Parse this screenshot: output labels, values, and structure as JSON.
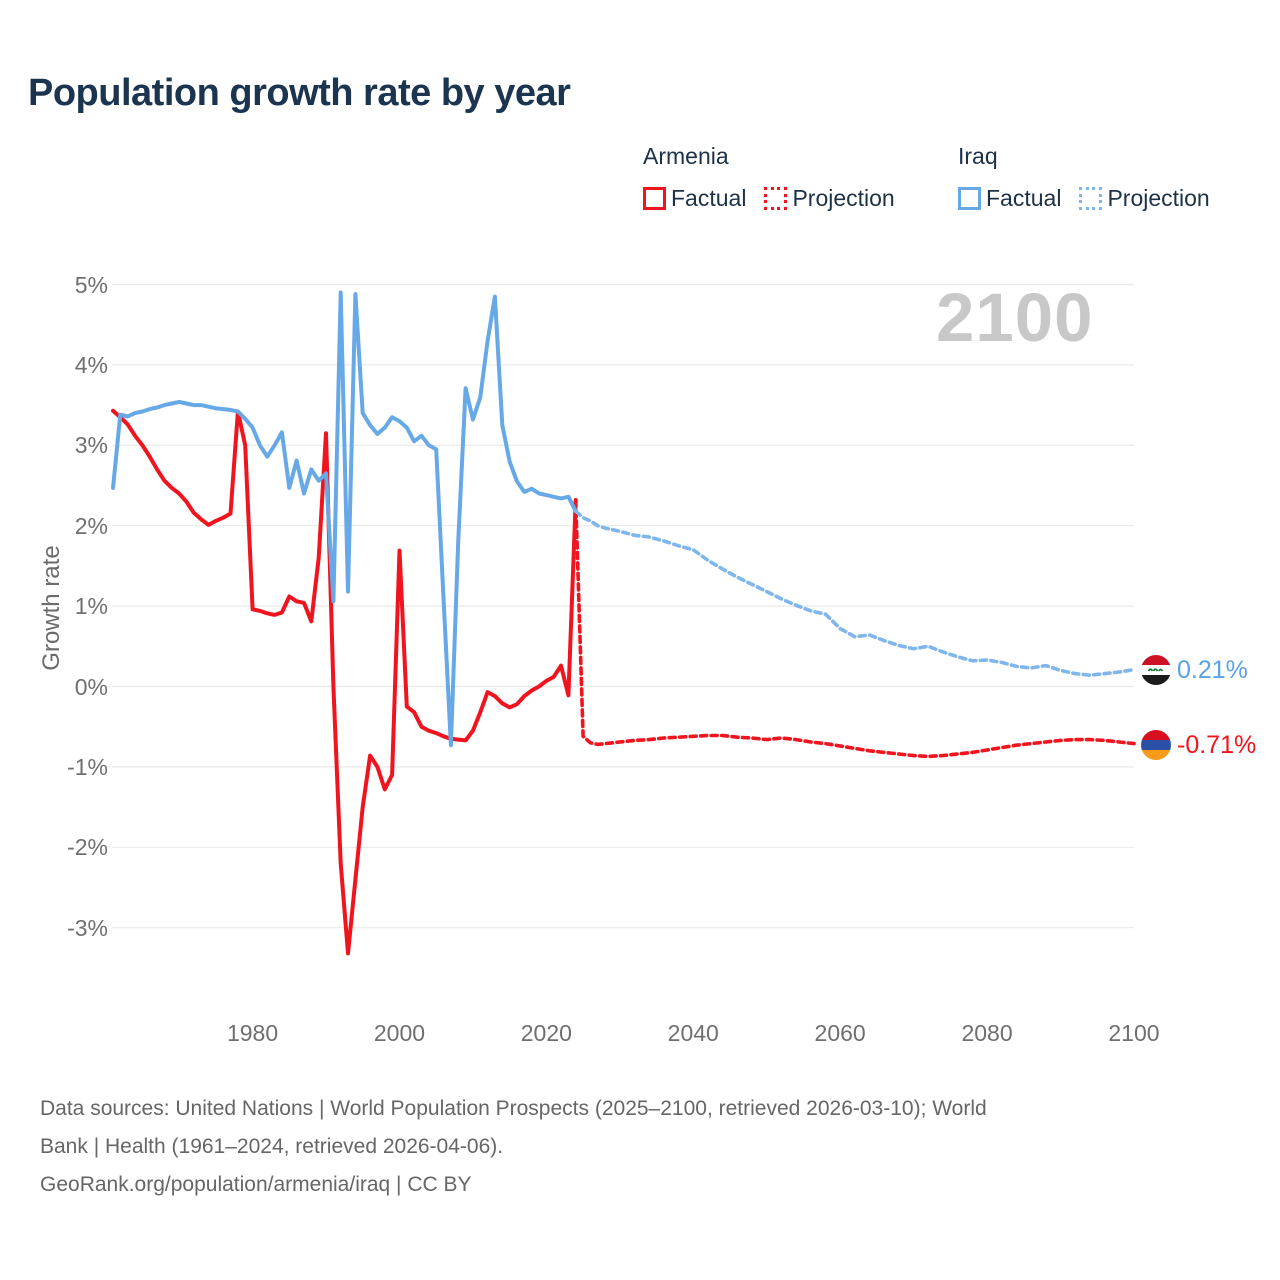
{
  "page": {
    "title": "Population growth rate by year"
  },
  "legend": {
    "groups": [
      {
        "country": "Armenia",
        "items": [
          {
            "label": "Factual",
            "style": "solid"
          },
          {
            "label": "Projection",
            "style": "dotted"
          }
        ]
      },
      {
        "country": "Iraq",
        "items": [
          {
            "label": "Factual",
            "style": "solid"
          },
          {
            "label": "Projection",
            "style": "dotted"
          }
        ]
      }
    ]
  },
  "watermark": "2100",
  "end_labels": [
    {
      "country": "Iraq",
      "value": "0.21%",
      "flag": "iraq-flag"
    },
    {
      "country": "Armenia",
      "value": "-0.71%",
      "flag": "armenia-flag"
    }
  ],
  "footer": {
    "lines": [
      "Data sources: United Nations | World Population Prospects (2025–2100, retrieved 2026-03-10); World",
      "Bank | Health (1961–2024, retrieved 2026-04-06).",
      "GeoRank.org/population/armenia/iraq | CC BY"
    ]
  },
  "colors": {
    "armenia": "#f0141e",
    "iraq": "#67a8e6",
    "iraq_projection": "#7fb6eb",
    "grid": "#eaeaea",
    "tick_text": "#6f6f6f",
    "title": "#1b3550",
    "legend_text": "#1d3147",
    "watermark": "#c8c8c8",
    "end_label_iraq": "#5aa2e6",
    "end_label_armenia": "#f0141e"
  },
  "chart_data": {
    "type": "line",
    "title": "Population growth rate by year",
    "xlabel": "",
    "ylabel": "Growth rate",
    "xlim": [
      1961,
      2100
    ],
    "ylim": [
      -3.5,
      5.2
    ],
    "grid": true,
    "grid_color": "#eaeaea",
    "legend_position": "top-right",
    "watermark": "2100",
    "y_ticks": [
      {
        "value": 5,
        "label": "5%"
      },
      {
        "value": 4,
        "label": "4%"
      },
      {
        "value": 3,
        "label": "3%"
      },
      {
        "value": 2,
        "label": "2%"
      },
      {
        "value": 1,
        "label": "1%"
      },
      {
        "value": 0,
        "label": "0%"
      },
      {
        "value": -1,
        "label": "-1%"
      },
      {
        "value": -2,
        "label": "-2%"
      },
      {
        "value": -3,
        "label": "-3%"
      }
    ],
    "x_ticks": [
      {
        "value": 1980,
        "label": "1980"
      },
      {
        "value": 2000,
        "label": "2000"
      },
      {
        "value": 2020,
        "label": "2020"
      },
      {
        "value": 2040,
        "label": "2040"
      },
      {
        "value": 2060,
        "label": "2060"
      },
      {
        "value": 2080,
        "label": "2080"
      },
      {
        "value": 2100,
        "label": "2100"
      }
    ],
    "series": [
      {
        "id": "armenia-factual",
        "name": "Armenia Factual",
        "style": "solid",
        "color": "#f0141e",
        "width": 4,
        "points": [
          [
            1961,
            3.43
          ],
          [
            1962,
            3.35
          ],
          [
            1963,
            3.26
          ],
          [
            1964,
            3.12
          ],
          [
            1965,
            3.0
          ],
          [
            1966,
            2.86
          ],
          [
            1967,
            2.7
          ],
          [
            1968,
            2.56
          ],
          [
            1969,
            2.47
          ],
          [
            1970,
            2.4
          ],
          [
            1971,
            2.3
          ],
          [
            1972,
            2.16
          ],
          [
            1973,
            2.08
          ],
          [
            1974,
            2.01
          ],
          [
            1975,
            2.06
          ],
          [
            1976,
            2.1
          ],
          [
            1977,
            2.15
          ],
          [
            1978,
            3.42
          ],
          [
            1979,
            3.0
          ],
          [
            1980,
            0.96
          ],
          [
            1981,
            0.94
          ],
          [
            1982,
            0.91
          ],
          [
            1983,
            0.89
          ],
          [
            1984,
            0.92
          ],
          [
            1985,
            1.12
          ],
          [
            1986,
            1.06
          ],
          [
            1987,
            1.04
          ],
          [
            1988,
            0.81
          ],
          [
            1989,
            1.6
          ],
          [
            1990,
            3.15
          ],
          [
            1991,
            0.0
          ],
          [
            1992,
            -2.2
          ],
          [
            1993,
            -3.32
          ],
          [
            1994,
            -2.4
          ],
          [
            1995,
            -1.5
          ],
          [
            1996,
            -0.86
          ],
          [
            1997,
            -1.0
          ],
          [
            1998,
            -1.28
          ],
          [
            1999,
            -1.1
          ],
          [
            2000,
            1.69
          ],
          [
            2001,
            -0.25
          ],
          [
            2002,
            -0.32
          ],
          [
            2003,
            -0.5
          ],
          [
            2004,
            -0.55
          ],
          [
            2005,
            -0.58
          ],
          [
            2006,
            -0.62
          ],
          [
            2007,
            -0.65
          ],
          [
            2008,
            -0.66
          ],
          [
            2009,
            -0.67
          ],
          [
            2010,
            -0.55
          ],
          [
            2011,
            -0.32
          ],
          [
            2012,
            -0.07
          ],
          [
            2013,
            -0.12
          ],
          [
            2014,
            -0.21
          ],
          [
            2015,
            -0.26
          ],
          [
            2016,
            -0.22
          ],
          [
            2017,
            -0.12
          ],
          [
            2018,
            -0.05
          ],
          [
            2019,
            0.0
          ],
          [
            2020,
            0.07
          ],
          [
            2021,
            0.12
          ],
          [
            2022,
            0.26
          ],
          [
            2023,
            -0.11
          ],
          [
            2024,
            2.32
          ]
        ]
      },
      {
        "id": "armenia-projection",
        "name": "Armenia Projection",
        "style": "dashed",
        "color": "#f0141e",
        "width": 3.6,
        "points": [
          [
            2024,
            2.32
          ],
          [
            2025,
            -0.62
          ],
          [
            2026,
            -0.7
          ],
          [
            2027,
            -0.72
          ],
          [
            2028,
            -0.71
          ],
          [
            2030,
            -0.69
          ],
          [
            2032,
            -0.67
          ],
          [
            2034,
            -0.66
          ],
          [
            2036,
            -0.64
          ],
          [
            2038,
            -0.63
          ],
          [
            2040,
            -0.62
          ],
          [
            2042,
            -0.61
          ],
          [
            2044,
            -0.61
          ],
          [
            2046,
            -0.63
          ],
          [
            2048,
            -0.64
          ],
          [
            2050,
            -0.66
          ],
          [
            2052,
            -0.64
          ],
          [
            2054,
            -0.66
          ],
          [
            2056,
            -0.69
          ],
          [
            2058,
            -0.71
          ],
          [
            2060,
            -0.74
          ],
          [
            2062,
            -0.77
          ],
          [
            2064,
            -0.8
          ],
          [
            2066,
            -0.82
          ],
          [
            2068,
            -0.84
          ],
          [
            2070,
            -0.86
          ],
          [
            2072,
            -0.87
          ],
          [
            2074,
            -0.86
          ],
          [
            2076,
            -0.84
          ],
          [
            2078,
            -0.82
          ],
          [
            2080,
            -0.79
          ],
          [
            2082,
            -0.76
          ],
          [
            2084,
            -0.73
          ],
          [
            2086,
            -0.71
          ],
          [
            2088,
            -0.69
          ],
          [
            2090,
            -0.67
          ],
          [
            2092,
            -0.66
          ],
          [
            2094,
            -0.66
          ],
          [
            2096,
            -0.67
          ],
          [
            2098,
            -0.69
          ],
          [
            2100,
            -0.71
          ]
        ]
      },
      {
        "id": "iraq-factual",
        "name": "Iraq Factual",
        "style": "solid",
        "color": "#67a8e6",
        "width": 4,
        "points": [
          [
            1961,
            2.47
          ],
          [
            1962,
            3.38
          ],
          [
            1963,
            3.36
          ],
          [
            1964,
            3.4
          ],
          [
            1965,
            3.42
          ],
          [
            1966,
            3.45
          ],
          [
            1967,
            3.47
          ],
          [
            1968,
            3.5
          ],
          [
            1969,
            3.52
          ],
          [
            1970,
            3.54
          ],
          [
            1971,
            3.52
          ],
          [
            1972,
            3.5
          ],
          [
            1973,
            3.5
          ],
          [
            1974,
            3.48
          ],
          [
            1975,
            3.46
          ],
          [
            1976,
            3.45
          ],
          [
            1977,
            3.44
          ],
          [
            1978,
            3.42
          ],
          [
            1979,
            3.33
          ],
          [
            1980,
            3.22
          ],
          [
            1981,
            3.0
          ],
          [
            1982,
            2.86
          ],
          [
            1983,
            3.0
          ],
          [
            1984,
            3.16
          ],
          [
            1985,
            2.47
          ],
          [
            1986,
            2.81
          ],
          [
            1987,
            2.4
          ],
          [
            1988,
            2.7
          ],
          [
            1989,
            2.56
          ],
          [
            1990,
            2.65
          ],
          [
            1991,
            1.06
          ],
          [
            1992,
            4.9
          ],
          [
            1993,
            1.18
          ],
          [
            1994,
            4.88
          ],
          [
            1995,
            3.4
          ],
          [
            1996,
            3.25
          ],
          [
            1997,
            3.14
          ],
          [
            1998,
            3.22
          ],
          [
            1999,
            3.35
          ],
          [
            2000,
            3.3
          ],
          [
            2001,
            3.22
          ],
          [
            2002,
            3.05
          ],
          [
            2003,
            3.12
          ],
          [
            2004,
            3.0
          ],
          [
            2005,
            2.95
          ],
          [
            2006,
            1.1
          ],
          [
            2007,
            -0.73
          ],
          [
            2008,
            1.8
          ],
          [
            2009,
            3.71
          ],
          [
            2010,
            3.32
          ],
          [
            2011,
            3.6
          ],
          [
            2012,
            4.3
          ],
          [
            2013,
            4.85
          ],
          [
            2014,
            3.25
          ],
          [
            2015,
            2.8
          ],
          [
            2016,
            2.55
          ],
          [
            2017,
            2.42
          ],
          [
            2018,
            2.46
          ],
          [
            2019,
            2.4
          ],
          [
            2020,
            2.38
          ],
          [
            2021,
            2.36
          ],
          [
            2022,
            2.34
          ],
          [
            2023,
            2.36
          ],
          [
            2024,
            2.18
          ]
        ]
      },
      {
        "id": "iraq-projection",
        "name": "Iraq Projection",
        "style": "dashed",
        "color": "#7fb6eb",
        "width": 3.6,
        "points": [
          [
            2024,
            2.18
          ],
          [
            2025,
            2.1
          ],
          [
            2026,
            2.06
          ],
          [
            2027,
            2.0
          ],
          [
            2028,
            1.97
          ],
          [
            2030,
            1.93
          ],
          [
            2032,
            1.88
          ],
          [
            2034,
            1.86
          ],
          [
            2036,
            1.81
          ],
          [
            2038,
            1.75
          ],
          [
            2040,
            1.7
          ],
          [
            2042,
            1.57
          ],
          [
            2044,
            1.46
          ],
          [
            2046,
            1.36
          ],
          [
            2048,
            1.27
          ],
          [
            2050,
            1.18
          ],
          [
            2052,
            1.09
          ],
          [
            2054,
            1.01
          ],
          [
            2056,
            0.94
          ],
          [
            2058,
            0.9
          ],
          [
            2060,
            0.72
          ],
          [
            2062,
            0.62
          ],
          [
            2064,
            0.64
          ],
          [
            2066,
            0.57
          ],
          [
            2068,
            0.51
          ],
          [
            2070,
            0.47
          ],
          [
            2072,
            0.5
          ],
          [
            2074,
            0.43
          ],
          [
            2076,
            0.37
          ],
          [
            2078,
            0.32
          ],
          [
            2080,
            0.33
          ],
          [
            2082,
            0.3
          ],
          [
            2084,
            0.25
          ],
          [
            2086,
            0.23
          ],
          [
            2088,
            0.26
          ],
          [
            2090,
            0.2
          ],
          [
            2092,
            0.16
          ],
          [
            2094,
            0.14
          ],
          [
            2096,
            0.16
          ],
          [
            2098,
            0.18
          ],
          [
            2100,
            0.21
          ]
        ]
      }
    ],
    "end_values": {
      "iraq": "0.21%",
      "armenia": "-0.71%"
    }
  }
}
